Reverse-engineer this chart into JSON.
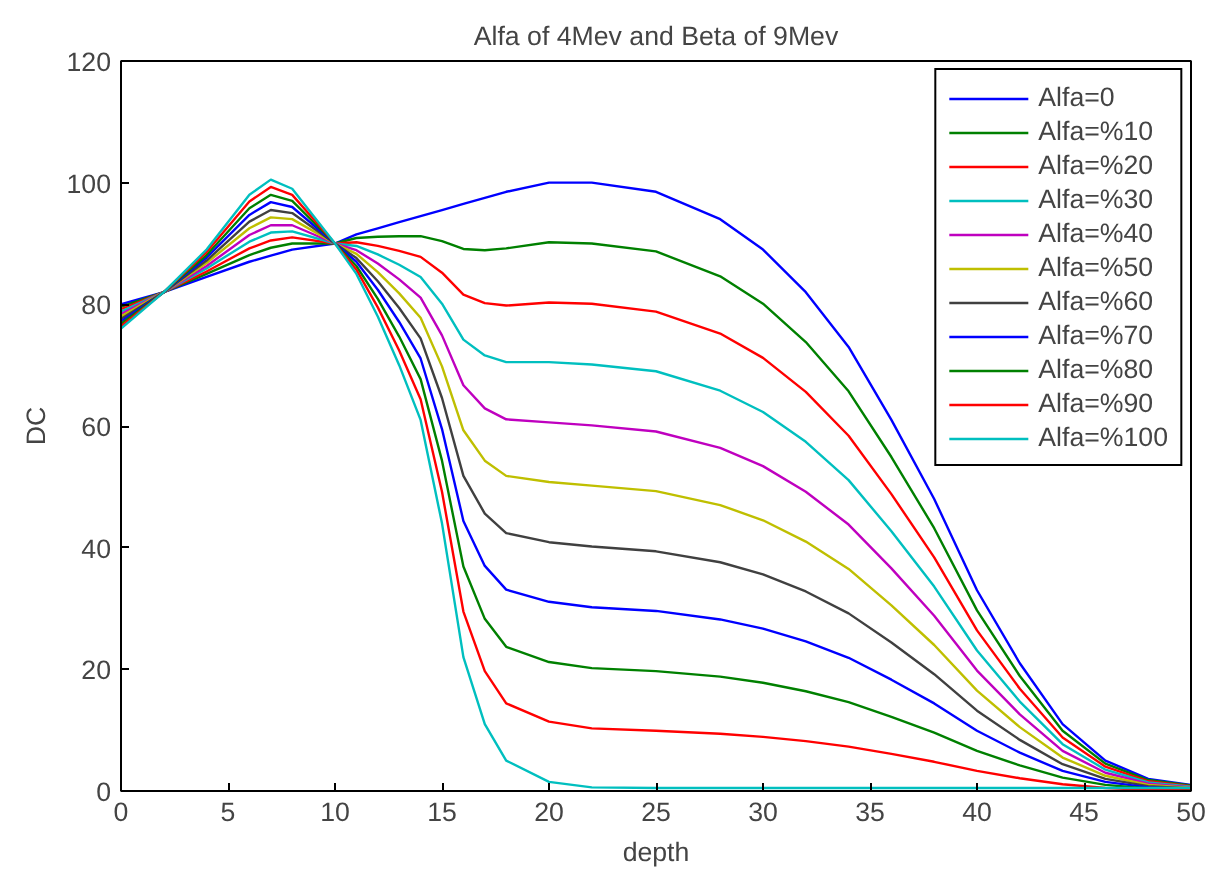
{
  "chart_data": {
    "type": "line",
    "title": "Alfa of 4Mev and Beta of 9Mev",
    "xlabel": "depth",
    "ylabel": "DC",
    "x": [
      0,
      2,
      4,
      6,
      7,
      8,
      10,
      11,
      12,
      13,
      14,
      15,
      16,
      17,
      18,
      20,
      22,
      25,
      28,
      30,
      32,
      34,
      36,
      38,
      40,
      42,
      44,
      46,
      48,
      50
    ],
    "xlim": [
      0,
      50
    ],
    "xticks": [
      0,
      5,
      10,
      15,
      20,
      25,
      30,
      35,
      40,
      45,
      50
    ],
    "ylim": [
      0,
      120
    ],
    "yticks": [
      0,
      20,
      40,
      60,
      80,
      100,
      120
    ],
    "grid": false,
    "legend": "top right",
    "marker": "none",
    "line_style": "solid",
    "series": [
      {
        "name": "Alfa=0",
        "color": "#0000ff",
        "values": [
          80,
          82,
          84.5,
          87,
          88,
          89,
          90,
          91.5,
          92.5,
          93.5,
          94.5,
          95.5,
          96.5,
          97.5,
          98.5,
          100,
          100,
          98.5,
          94,
          89,
          82,
          73,
          61,
          48,
          33,
          21,
          11,
          5,
          2,
          1
        ]
      },
      {
        "name": "Alfa=%10",
        "color": "#008000",
        "values": [
          79.6,
          82,
          85,
          88.1,
          89.3,
          90,
          90,
          90.9,
          91.1,
          91.2,
          91.2,
          90.4,
          89.1,
          88.9,
          89.2,
          90.2,
          90,
          88.7,
          84.6,
          80.1,
          73.8,
          65.7,
          54.9,
          43.2,
          29.7,
          18.9,
          9.9,
          4.5,
          1.8,
          0.9
        ]
      },
      {
        "name": "Alfa=%20",
        "color": "#ff0000",
        "values": [
          79.2,
          82,
          85.4,
          89.2,
          90.5,
          91,
          90,
          90.2,
          89.6,
          88.8,
          87.8,
          85.2,
          81.6,
          80.2,
          79.8,
          80.3,
          80.1,
          78.8,
          75.2,
          71.2,
          65.6,
          58.4,
          48.8,
          38.4,
          26.4,
          16.8,
          8.8,
          4,
          1.6,
          0.8
        ]
      },
      {
        "name": "Alfa=%30",
        "color": "#00bfbf",
        "values": [
          78.8,
          82,
          85.9,
          90.3,
          91.8,
          92,
          90,
          89.6,
          88.2,
          86.5,
          84.5,
          80.1,
          74.2,
          71.6,
          70.5,
          70.5,
          70.1,
          69,
          65.8,
          62.3,
          57.4,
          51.1,
          42.7,
          33.6,
          23.1,
          14.7,
          7.7,
          3.5,
          1.4,
          0.7
        ]
      },
      {
        "name": "Alfa=%40",
        "color": "#bf00bf",
        "values": [
          78.4,
          82,
          86.3,
          91.4,
          93,
          93,
          90,
          88.9,
          86.7,
          84.1,
          81.1,
          74.9,
          66.7,
          62.9,
          61.1,
          60.6,
          60.1,
          59.1,
          56.4,
          53.4,
          49.2,
          43.8,
          36.6,
          28.8,
          19.8,
          12.6,
          6.6,
          3,
          1.2,
          0.6
        ]
      },
      {
        "name": "Alfa=%50",
        "color": "#bfbf00",
        "values": [
          78,
          82,
          86.8,
          92.5,
          94.3,
          94,
          90,
          88.3,
          85.3,
          81.8,
          77.8,
          69.8,
          59.3,
          54.3,
          51.8,
          50.8,
          50.2,
          49.3,
          47,
          44.5,
          41,
          36.5,
          30.5,
          24,
          16.5,
          10.5,
          5.5,
          2.5,
          1,
          0.5
        ]
      },
      {
        "name": "Alfa=%60",
        "color": "#404040",
        "values": [
          77.6,
          82,
          87.2,
          93.6,
          95.5,
          95,
          90,
          87.6,
          83.8,
          79.4,
          74.4,
          64.6,
          51.8,
          45.6,
          42.4,
          40.9,
          40.2,
          39.4,
          37.6,
          35.6,
          32.8,
          29.2,
          24.4,
          19.2,
          13.2,
          8.4,
          4.4,
          2,
          0.8,
          0.4
        ]
      },
      {
        "name": "Alfa=%70",
        "color": "#0000ff",
        "values": [
          77.2,
          82,
          87.7,
          94.7,
          96.8,
          96,
          90,
          87,
          82.4,
          77.1,
          71.1,
          59.5,
          44.4,
          37,
          33.1,
          31.1,
          30.2,
          29.6,
          28.2,
          26.7,
          24.6,
          21.9,
          18.3,
          14.4,
          9.9,
          6.3,
          3.3,
          1.5,
          0.6,
          0.3
        ]
      },
      {
        "name": "Alfa=%80",
        "color": "#008000",
        "values": [
          76.8,
          82,
          88.1,
          95.8,
          98,
          97,
          90,
          86.3,
          80.9,
          74.7,
          67.7,
          54.3,
          36.9,
          28.3,
          23.7,
          21.2,
          20.2,
          19.7,
          18.8,
          17.8,
          16.4,
          14.6,
          12.2,
          9.6,
          6.6,
          4.2,
          2.2,
          1,
          0.4,
          0.2
        ]
      },
      {
        "name": "Alfa=%90",
        "color": "#ff0000",
        "values": [
          76.4,
          82,
          88.6,
          96.9,
          99.3,
          98,
          90,
          85.7,
          79.5,
          72.4,
          64.4,
          49.2,
          29.5,
          19.7,
          14.4,
          11.4,
          10.3,
          9.9,
          9.4,
          8.9,
          8.2,
          7.3,
          6.1,
          4.8,
          3.3,
          2.1,
          1.1,
          0.5,
          0.2,
          0.1
        ]
      },
      {
        "name": "Alfa=%100",
        "color": "#00bfbf",
        "values": [
          76,
          82,
          89,
          98,
          100.5,
          99,
          90,
          85,
          78,
          70,
          61,
          44,
          22,
          11,
          5,
          1.5,
          0.6,
          0.5,
          0.5,
          0.5,
          0.5,
          0.5,
          0.5,
          0.5,
          0.5,
          0.5,
          0.5,
          0.5,
          0.5,
          0.5
        ]
      }
    ]
  }
}
